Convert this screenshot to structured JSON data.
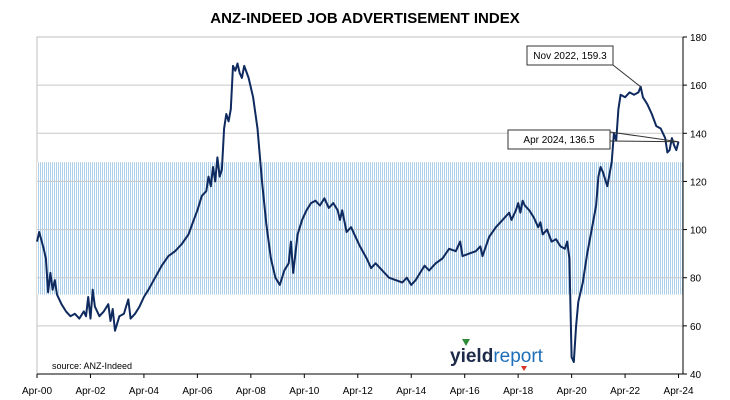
{
  "chart_data": {
    "type": "line",
    "title": "ANZ-INDEED JOB ADVERTISEMENT INDEX",
    "xlabel": "",
    "ylabel": "",
    "ylim": [
      40,
      180
    ],
    "y_ticks": [
      40,
      60,
      80,
      100,
      120,
      140,
      160,
      180
    ],
    "x_tick_labels": [
      "Apr-00",
      "Apr-02",
      "Apr-04",
      "Apr-06",
      "Apr-08",
      "Apr-10",
      "Apr-12",
      "Apr-14",
      "Apr-16",
      "Apr-18",
      "Apr-20",
      "Apr-22",
      "Apr-24"
    ],
    "x_range": [
      "2000-04",
      "2024-06"
    ],
    "grid": "horizontal",
    "shaded_band": [
      73,
      128
    ],
    "series": [
      {
        "color": "#0f2a5f",
        "points": [
          [
            "2000-04",
            95
          ],
          [
            "2000-05",
            99
          ],
          [
            "2000-07",
            92
          ],
          [
            "2000-08",
            88
          ],
          [
            "2000-09",
            74
          ],
          [
            "2000-10",
            82
          ],
          [
            "2000-11",
            75
          ],
          [
            "2000-12",
            79
          ],
          [
            "2001-01",
            73
          ],
          [
            "2001-03",
            69
          ],
          [
            "2001-05",
            66
          ],
          [
            "2001-07",
            64
          ],
          [
            "2001-09",
            65
          ],
          [
            "2001-11",
            63
          ],
          [
            "2002-01",
            66
          ],
          [
            "2002-02",
            64
          ],
          [
            "2002-03",
            72
          ],
          [
            "2002-04",
            63
          ],
          [
            "2002-05",
            75
          ],
          [
            "2002-06",
            68
          ],
          [
            "2002-08",
            64
          ],
          [
            "2002-10",
            66
          ],
          [
            "2002-12",
            69
          ],
          [
            "2003-01",
            62
          ],
          [
            "2003-02",
            67
          ],
          [
            "2003-03",
            58
          ],
          [
            "2003-05",
            64
          ],
          [
            "2003-07",
            65
          ],
          [
            "2003-09",
            71
          ],
          [
            "2003-10",
            63
          ],
          [
            "2003-12",
            65
          ],
          [
            "2004-02",
            68
          ],
          [
            "2004-04",
            72
          ],
          [
            "2004-06",
            75
          ],
          [
            "2004-09",
            80
          ],
          [
            "2004-12",
            85
          ],
          [
            "2005-03",
            89
          ],
          [
            "2005-06",
            91
          ],
          [
            "2005-09",
            94
          ],
          [
            "2005-12",
            98
          ],
          [
            "2006-02",
            103
          ],
          [
            "2006-04",
            108
          ],
          [
            "2006-06",
            114
          ],
          [
            "2006-08",
            116
          ],
          [
            "2006-09",
            122
          ],
          [
            "2006-10",
            118
          ],
          [
            "2006-11",
            126
          ],
          [
            "2006-12",
            120
          ],
          [
            "2007-01",
            130
          ],
          [
            "2007-02",
            122
          ],
          [
            "2007-03",
            125
          ],
          [
            "2007-04",
            142
          ],
          [
            "2007-05",
            148
          ],
          [
            "2007-06",
            145
          ],
          [
            "2007-07",
            150
          ],
          [
            "2007-08",
            168
          ],
          [
            "2007-09",
            166
          ],
          [
            "2007-10",
            169
          ],
          [
            "2007-11",
            165
          ],
          [
            "2007-12",
            163
          ],
          [
            "2008-01",
            168
          ],
          [
            "2008-03",
            163
          ],
          [
            "2008-05",
            155
          ],
          [
            "2008-07",
            142
          ],
          [
            "2008-09",
            120
          ],
          [
            "2008-11",
            102
          ],
          [
            "2009-01",
            88
          ],
          [
            "2009-03",
            80
          ],
          [
            "2009-05",
            77
          ],
          [
            "2009-07",
            83
          ],
          [
            "2009-09",
            86
          ],
          [
            "2009-10",
            95
          ],
          [
            "2009-11",
            82
          ],
          [
            "2010-01",
            98
          ],
          [
            "2010-03",
            104
          ],
          [
            "2010-05",
            108
          ],
          [
            "2010-07",
            111
          ],
          [
            "2010-09",
            112
          ],
          [
            "2010-11",
            110
          ],
          [
            "2011-01",
            113
          ],
          [
            "2011-03",
            109
          ],
          [
            "2011-05",
            111
          ],
          [
            "2011-07",
            108
          ],
          [
            "2011-08",
            104
          ],
          [
            "2011-09",
            108
          ],
          [
            "2011-11",
            99
          ],
          [
            "2012-01",
            101
          ],
          [
            "2012-03",
            97
          ],
          [
            "2012-05",
            93
          ],
          [
            "2012-08",
            88
          ],
          [
            "2012-10",
            84
          ],
          [
            "2012-12",
            86
          ],
          [
            "2013-03",
            83
          ],
          [
            "2013-06",
            80
          ],
          [
            "2013-09",
            79
          ],
          [
            "2013-12",
            78
          ],
          [
            "2014-02",
            80
          ],
          [
            "2014-04",
            77
          ],
          [
            "2014-06",
            79
          ],
          [
            "2014-08",
            82
          ],
          [
            "2014-10",
            85
          ],
          [
            "2014-12",
            83
          ],
          [
            "2015-03",
            86
          ],
          [
            "2015-06",
            88
          ],
          [
            "2015-09",
            92
          ],
          [
            "2015-12",
            91
          ],
          [
            "2016-02",
            95
          ],
          [
            "2016-03",
            89
          ],
          [
            "2016-06",
            90
          ],
          [
            "2016-09",
            91
          ],
          [
            "2016-11",
            93
          ],
          [
            "2016-12",
            89
          ],
          [
            "2017-03",
            97
          ],
          [
            "2017-06",
            101
          ],
          [
            "2017-09",
            104
          ],
          [
            "2017-12",
            107
          ],
          [
            "2018-01",
            104
          ],
          [
            "2018-03",
            108
          ],
          [
            "2018-04",
            111
          ],
          [
            "2018-05",
            107
          ],
          [
            "2018-06",
            112
          ],
          [
            "2018-07",
            110
          ],
          [
            "2018-09",
            108
          ],
          [
            "2018-11",
            105
          ],
          [
            "2019-01",
            101
          ],
          [
            "2019-02",
            103
          ],
          [
            "2019-03",
            98
          ],
          [
            "2019-05",
            100
          ],
          [
            "2019-07",
            95
          ],
          [
            "2019-09",
            96
          ],
          [
            "2019-11",
            93
          ],
          [
            "2020-01",
            92
          ],
          [
            "2020-02",
            95
          ],
          [
            "2020-03",
            88
          ],
          [
            "2020-04",
            47
          ],
          [
            "2020-05",
            45
          ],
          [
            "2020-06",
            60
          ],
          [
            "2020-07",
            70
          ],
          [
            "2020-09",
            78
          ],
          [
            "2020-11",
            90
          ],
          [
            "2021-01",
            100
          ],
          [
            "2021-03",
            110
          ],
          [
            "2021-04",
            122
          ],
          [
            "2021-05",
            126
          ],
          [
            "2021-06",
            124
          ],
          [
            "2021-08",
            118
          ],
          [
            "2021-10",
            128
          ],
          [
            "2021-11",
            140
          ],
          [
            "2021-12",
            137
          ],
          [
            "2022-01",
            150
          ],
          [
            "2022-02",
            156
          ],
          [
            "2022-04",
            155
          ],
          [
            "2022-06",
            157
          ],
          [
            "2022-08",
            156
          ],
          [
            "2022-10",
            157
          ],
          [
            "2022-11",
            159.3
          ],
          [
            "2022-12",
            155
          ],
          [
            "2023-02",
            152
          ],
          [
            "2023-04",
            148
          ],
          [
            "2023-06",
            143
          ],
          [
            "2023-08",
            142
          ],
          [
            "2023-10",
            138
          ],
          [
            "2023-11",
            132
          ],
          [
            "2023-12",
            133
          ],
          [
            "2024-01",
            138
          ],
          [
            "2024-02",
            135
          ],
          [
            "2024-03",
            133
          ],
          [
            "2024-04",
            136.5
          ]
        ]
      }
    ],
    "annotations": [
      {
        "text": "Nov 2022, 159.3",
        "point": [
          "2022-11",
          159.3
        ]
      },
      {
        "text": "Apr 2024, 136.5",
        "point": [
          "2024-04",
          136.5
        ]
      }
    ],
    "source": "source: ANZ-Indeed",
    "logo": {
      "text_left": "yield",
      "text_right": "report",
      "color_left": "#1e2a4a",
      "color_right": "#1e6fb8"
    }
  }
}
